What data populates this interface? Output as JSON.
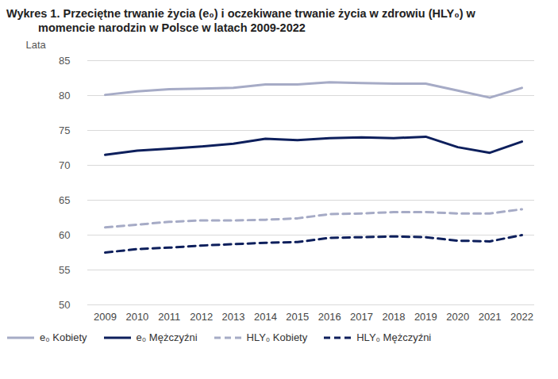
{
  "chart_data": {
    "type": "line",
    "title": "Wykres 1. Przeciętne trwanie życia (e₀) i oczekiwane trwanie życia w zdrowiu (HLY₀) w momencie narodzin w Polsce w latach 2009-2022",
    "y_label": "Lata",
    "x": [
      2009,
      2010,
      2011,
      2012,
      2013,
      2014,
      2015,
      2016,
      2017,
      2018,
      2019,
      2020,
      2021,
      2022
    ],
    "xlim": [
      2009,
      2022
    ],
    "xticks": [
      2009,
      2010,
      2011,
      2012,
      2013,
      2014,
      2015,
      2016,
      2017,
      2018,
      2019,
      2020,
      2021,
      2022
    ],
    "ylim": [
      50,
      85
    ],
    "yticks": [
      50,
      55,
      60,
      65,
      70,
      75,
      80,
      85
    ],
    "grid": true,
    "legend": "bottom",
    "series": [
      {
        "name": "e₀ Kobiety",
        "color": "#a6abc6",
        "line_style": "solid",
        "values": [
          80.1,
          80.6,
          80.9,
          81.0,
          81.1,
          81.6,
          81.6,
          81.9,
          81.8,
          81.7,
          81.7,
          80.7,
          79.7,
          81.1
        ]
      },
      {
        "name": "e₀ Mężczyźni",
        "color": "#0d1f5c",
        "line_style": "solid",
        "values": [
          71.5,
          72.1,
          72.4,
          72.7,
          73.1,
          73.8,
          73.6,
          73.9,
          74.0,
          73.9,
          74.1,
          72.6,
          71.8,
          73.4
        ]
      },
      {
        "name": "HLY₀ Kobiety",
        "color": "#a6abc6",
        "line_style": "dashed",
        "values": [
          61.1,
          61.5,
          61.9,
          62.1,
          62.1,
          62.2,
          62.4,
          63.0,
          63.1,
          63.3,
          63.3,
          63.1,
          63.1,
          63.7
        ]
      },
      {
        "name": "HLY₀ Mężczyźni",
        "color": "#0d1f5c",
        "line_style": "dashed",
        "values": [
          57.5,
          58.0,
          58.2,
          58.5,
          58.7,
          58.9,
          59.0,
          59.6,
          59.7,
          59.8,
          59.7,
          59.2,
          59.1,
          60.0
        ]
      }
    ]
  }
}
